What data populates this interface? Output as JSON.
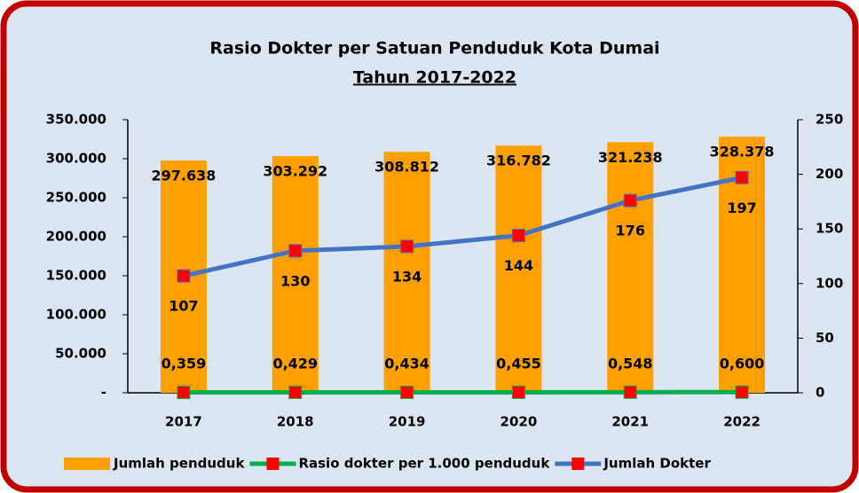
{
  "chart_data": {
    "type": "combo",
    "title": "Rasio Dokter per Satuan Penduduk Kota Dumai",
    "subtitle": "Tahun 2017-2022",
    "categories": [
      "2017",
      "2018",
      "2019",
      "2020",
      "2021",
      "2022"
    ],
    "series": [
      {
        "name": "Jumlah penduduk",
        "type": "bar",
        "axis": "y",
        "color": "#ffa000",
        "values": [
          297638,
          303292,
          308812,
          316782,
          321238,
          328378
        ],
        "value_labels": [
          "297.638",
          "303.292",
          "308.812",
          "316.782",
          "321.238",
          "328.378"
        ]
      },
      {
        "name": "Rasio dokter per 1.000 penduduk",
        "type": "line",
        "axis": "y2",
        "color": "#00b050",
        "marker_color": "#ff0000",
        "values": [
          0.359,
          0.429,
          0.434,
          0.455,
          0.548,
          0.6
        ],
        "value_labels": [
          "0,359",
          "0,429",
          "0,434",
          "0,455",
          "0,548",
          "0,600"
        ]
      },
      {
        "name": "Jumlah Dokter",
        "type": "line",
        "axis": "y2",
        "color": "#4472c4",
        "marker_color": "#ff0000",
        "values": [
          107,
          130,
          134,
          144,
          176,
          197
        ]
      }
    ],
    "ylim": [
      0,
      350000
    ],
    "yticks": [
      {
        "value": 0,
        "label": "-"
      },
      {
        "value": 50000,
        "label": "50.000"
      },
      {
        "value": 100000,
        "label": "100.000"
      },
      {
        "value": 150000,
        "label": "150.000"
      },
      {
        "value": 200000,
        "label": "200.000"
      },
      {
        "value": 250000,
        "label": "250.000"
      },
      {
        "value": 300000,
        "label": "300.000"
      },
      {
        "value": 350000,
        "label": "350.000"
      }
    ],
    "y2lim": [
      0,
      250
    ],
    "y2ticks": [
      0,
      50,
      100,
      150,
      200,
      250
    ],
    "grid": false,
    "legend": "bottom"
  }
}
